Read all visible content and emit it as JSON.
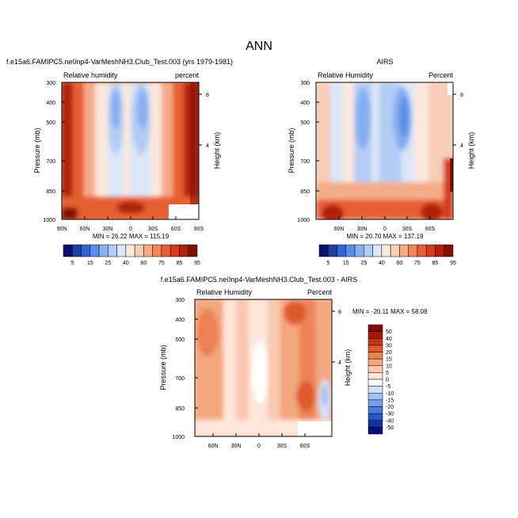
{
  "title": "ANN",
  "palette": {
    "rh": [
      "#08106b",
      "#1d3fa0",
      "#2f65d2",
      "#5a8de6",
      "#86aff0",
      "#b3ccf4",
      "#dbe6f7",
      "#fbe8dc",
      "#f8cdb5",
      "#f5ab87",
      "#f0865a",
      "#e65f33",
      "#d33b1a",
      "#b1200c",
      "#801003"
    ],
    "diff": [
      "#0a0f7a",
      "#12329e",
      "#2857c7",
      "#4a7ddc",
      "#759fe9",
      "#a3c1f2",
      "#d2e1f8",
      "#ffffff",
      "#fde6da",
      "#f9c7ad",
      "#f4a67f",
      "#ec8152",
      "#de5a2e",
      "#c7361a",
      "#a6170a",
      "#7f0b04"
    ]
  },
  "chart_data": [
    {
      "type": "heatmap",
      "title": "f.e15a6.FAMIPC5.ne0np4-VarMeshNH3.Club_Test.003 (yrs 1979-1981)",
      "left_label": "Relative humidity",
      "right_label": "percent",
      "xlabel": "",
      "ylabel": "Pressure (mb)",
      "y2label": "Height (km)",
      "x_ticks": [
        "90N",
        "60N",
        "30N",
        "0",
        "30S",
        "60S",
        "90S"
      ],
      "y_ticks": [
        "300",
        "400",
        "500",
        "700",
        "850",
        "1000"
      ],
      "y2_ticks": [
        "8",
        "4"
      ],
      "stats": "MIN = 26.22  MAX = 115.19",
      "colorbar_labels": [
        "5",
        "15",
        "25",
        "40",
        "60",
        "75",
        "85",
        "95"
      ]
    },
    {
      "type": "heatmap",
      "title": "AIRS",
      "left_label": "Relative Humidity",
      "right_label": "Percent",
      "xlabel": "",
      "ylabel": "Pressure (mb)",
      "y2label": "Height (km)",
      "x_ticks": [
        "60N",
        "30N",
        "0",
        "30S",
        "60S"
      ],
      "y_ticks": [
        "300",
        "400",
        "500",
        "700",
        "850",
        "1000"
      ],
      "y2_ticks": [
        "8",
        "4"
      ],
      "stats": "MIN = 20.70  MAX = 137.19",
      "colorbar_labels": [
        "5",
        "15",
        "25",
        "40",
        "60",
        "75",
        "85",
        "95"
      ]
    },
    {
      "type": "heatmap",
      "title": "f.e15a6.FAMIPC5.ne0np4-VarMeshNH3.Club_Test.003 - AIRS",
      "left_label": "Relative Humidity",
      "right_label": "Percent",
      "xlabel": "",
      "ylabel": "Pressure (mb)",
      "y2label": "Height (km)",
      "x_ticks": [
        "60N",
        "30N",
        "0",
        "30S",
        "60S"
      ],
      "y_ticks": [
        "300",
        "400",
        "500",
        "700",
        "850",
        "1000"
      ],
      "y2_ticks": [
        "8",
        "4"
      ],
      "stats": "MIN = -20.11  MAX = 58.08",
      "colorbar_labels": [
        "50",
        "40",
        "30",
        "20",
        "15",
        "10",
        "5",
        "0",
        "-5",
        "-10",
        "-15",
        "-20",
        "-30",
        "-40",
        "-50"
      ]
    }
  ]
}
